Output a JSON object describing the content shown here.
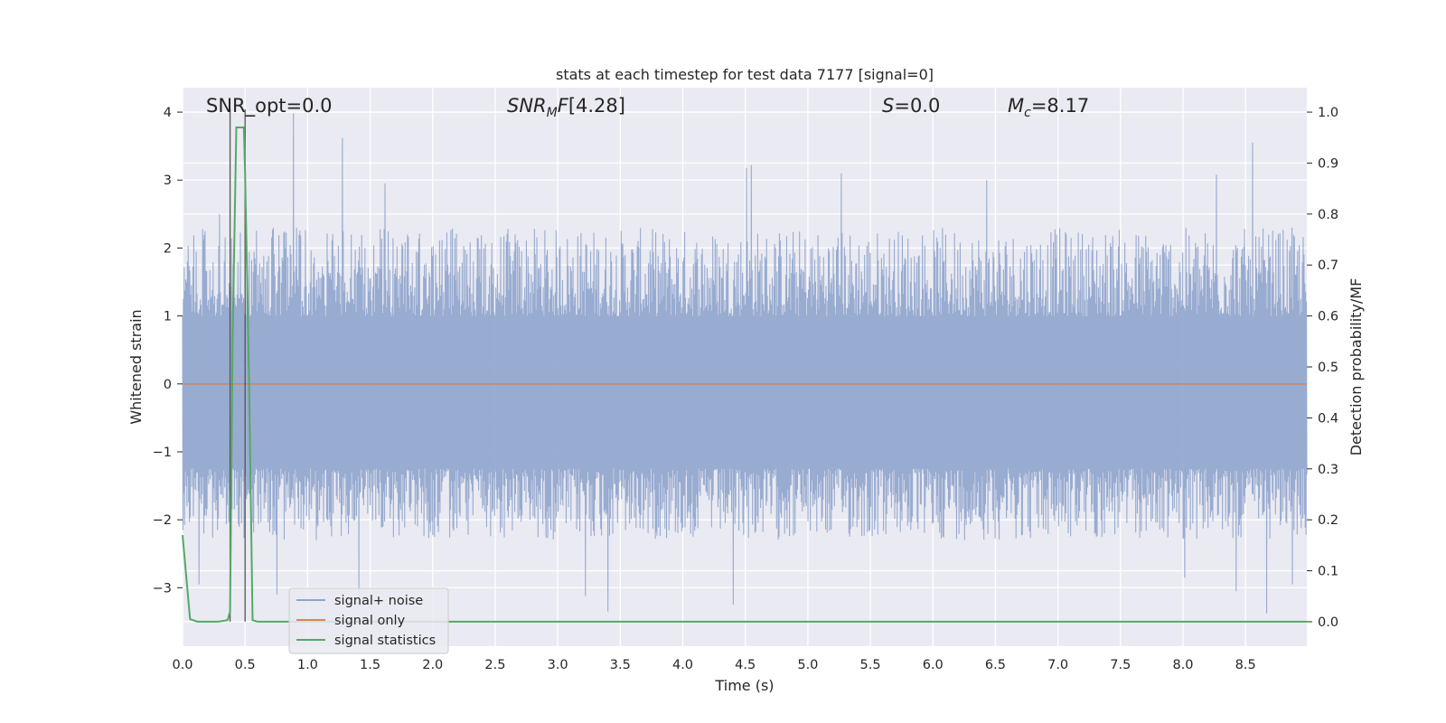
{
  "chart_data": {
    "type": "line",
    "title": "stats at each timestep for test data 7177 [signal=0]",
    "xlabel": "Time (s)",
    "ylabel_left": "Whitened strain",
    "ylabel_right": "Detection probability/MF",
    "xlim": [
      0,
      8.99
    ],
    "ylim_left": [
      -3.86,
      4.36
    ],
    "ylim_right": [
      -0.048,
      1.048
    ],
    "x_ticks": [
      "0.0",
      "0.5",
      "1.0",
      "1.5",
      "2.0",
      "2.5",
      "3.0",
      "3.5",
      "4.0",
      "4.5",
      "5.0",
      "5.5",
      "6.0",
      "6.5",
      "7.0",
      "7.5",
      "8.0",
      "8.5"
    ],
    "y_ticks_left": [
      "4",
      "3",
      "2",
      "1",
      "0",
      "−1",
      "−2",
      "−3"
    ],
    "y_ticks_right": [
      "1.0",
      "0.9",
      "0.8",
      "0.7",
      "0.6",
      "0.5",
      "0.4",
      "0.3",
      "0.2",
      "0.1",
      "0.0"
    ],
    "grid": true,
    "legend_position": "lower-left",
    "annotations": {
      "snr_opt": "SNR_opt=0.0",
      "snr_mf": "[4.28]",
      "s_value": "=0.0",
      "mc_value": "=8.17"
    },
    "vertical_lines_x": [
      0.38,
      0.5
    ],
    "series": [
      {
        "name": "signal+ noise",
        "color": "#8fa4cc",
        "axis": "left",
        "noise_envelope": {
          "core_band": [
            -1.25,
            1.0
          ],
          "typical_peak_max": 2.3,
          "typical_trough_min": -2.3,
          "peaks": [
            [
              0.89,
              3.98
            ],
            [
              1.28,
              3.62
            ],
            [
              4.51,
              3.18
            ],
            [
              8.56,
              3.55
            ],
            [
              4.55,
              3.22
            ],
            [
              5.27,
              3.1
            ],
            [
              8.27,
              3.08
            ],
            [
              0.3,
              2.5
            ],
            [
              1.62,
              2.95
            ],
            [
              6.43,
              3.0
            ]
          ],
          "troughs": [
            [
              1.41,
              -3.1
            ],
            [
              3.4,
              -3.35
            ],
            [
              3.22,
              -3.12
            ],
            [
              4.4,
              -3.25
            ],
            [
              8.67,
              -3.38
            ],
            [
              8.42,
              -3.05
            ],
            [
              0.75,
              -3.1
            ],
            [
              0.13,
              -2.95
            ],
            [
              8.01,
              -2.85
            ],
            [
              8.87,
              -2.95
            ]
          ]
        }
      },
      {
        "name": "signal only",
        "color": "#dd8452",
        "axis": "left",
        "x": [
          0,
          8.99
        ],
        "y": [
          0,
          0
        ]
      },
      {
        "name": "signal statistics",
        "color": "#55a868",
        "axis": "right",
        "x": [
          0.0,
          0.06,
          0.12,
          0.28,
          0.36,
          0.38,
          0.4,
          0.43,
          0.49,
          0.5,
          0.53,
          0.56,
          0.6,
          8.99
        ],
        "y": [
          0.17,
          0.005,
          0.0,
          0.0,
          0.003,
          0.02,
          0.55,
          0.97,
          0.97,
          0.88,
          0.5,
          0.003,
          0.0,
          0.0
        ]
      }
    ]
  }
}
